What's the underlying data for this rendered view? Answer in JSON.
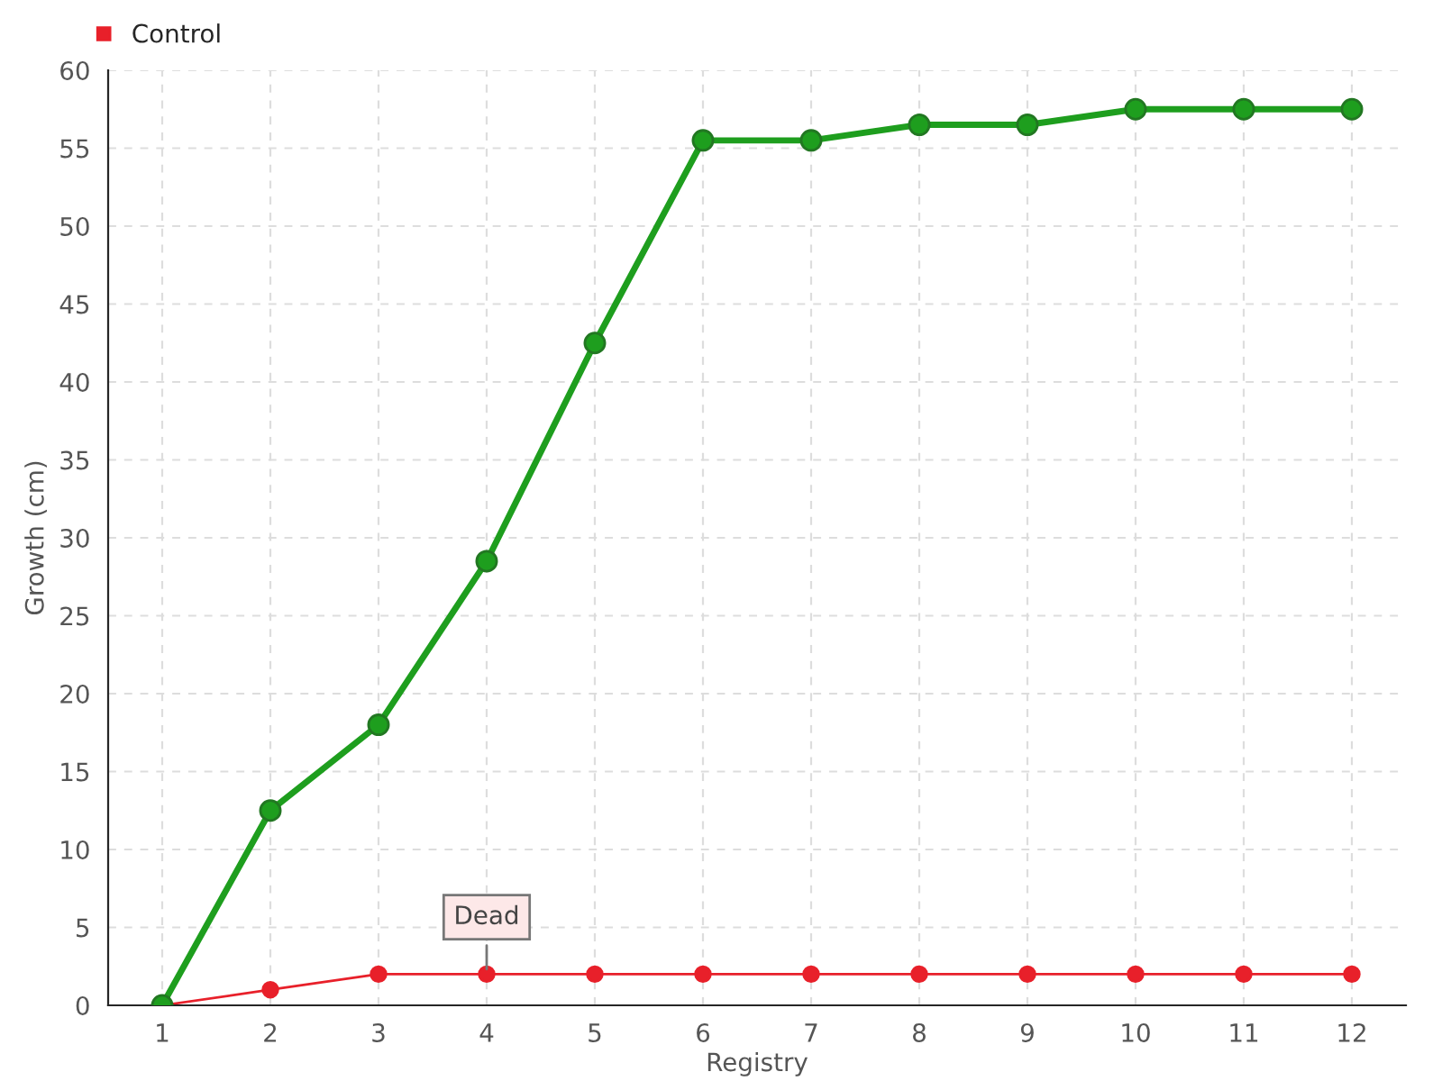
{
  "chart_data": {
    "type": "line",
    "xlabel": "Registry",
    "ylabel": "Growth (cm)",
    "categories": [
      "1",
      "2",
      "3",
      "4",
      "5",
      "6",
      "7",
      "8",
      "9",
      "10",
      "11",
      "12"
    ],
    "series": [
      {
        "color": "#1e9e1e",
        "values": [
          0,
          12.5,
          18,
          28.5,
          42.5,
          55.5,
          55.5,
          56.5,
          56.5,
          57.5,
          57.5,
          57.5
        ]
      },
      {
        "name": "Control",
        "color": "#e8202a",
        "values": [
          0,
          1,
          2,
          2,
          2,
          2,
          2,
          2,
          2,
          2,
          2,
          2
        ]
      }
    ],
    "ylim": [
      0,
      60
    ],
    "yticks": [
      0,
      5,
      10,
      15,
      20,
      25,
      30,
      35,
      40,
      45,
      50,
      55,
      60
    ],
    "annotations": [
      {
        "text": "Dead",
        "x": "4",
        "y": 2
      }
    ],
    "grid": true,
    "legend": "top left",
    "marker": "circle",
    "line_style": "solid"
  }
}
